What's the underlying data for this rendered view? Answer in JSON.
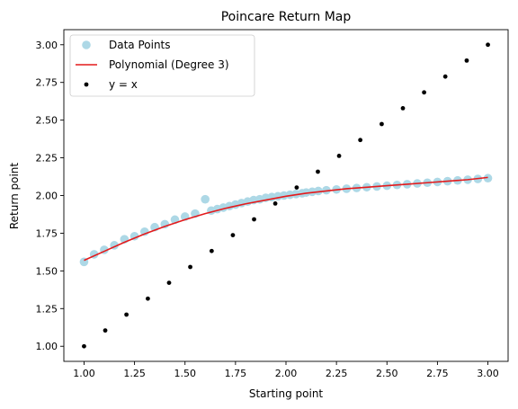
{
  "chart_data": {
    "type": "scatter",
    "title": "Poincare Return Map",
    "xlabel": "Starting point",
    "ylabel": "Return point",
    "xlim": [
      0.9,
      3.1
    ],
    "ylim": [
      0.9,
      3.1
    ],
    "xticks": [
      1.0,
      1.25,
      1.5,
      1.75,
      2.0,
      2.25,
      2.5,
      2.75,
      3.0
    ],
    "yticks": [
      1.0,
      1.25,
      1.5,
      1.75,
      2.0,
      2.25,
      2.5,
      2.75,
      3.0
    ],
    "xtick_labels": [
      "1.00",
      "1.25",
      "1.50",
      "1.75",
      "2.00",
      "2.25",
      "2.50",
      "2.75",
      "3.00"
    ],
    "ytick_labels": [
      "1.00",
      "1.25",
      "1.50",
      "1.75",
      "2.00",
      "2.25",
      "2.50",
      "2.75",
      "3.00"
    ],
    "grid": false,
    "legend_position": "upper-left",
    "series": [
      {
        "name": "Data Points",
        "kind": "scatter",
        "color": "#add8e6",
        "points": [
          [
            1.0,
            1.56
          ],
          [
            1.05,
            1.61
          ],
          [
            1.1,
            1.64
          ],
          [
            1.15,
            1.67
          ],
          [
            1.2,
            1.71
          ],
          [
            1.25,
            1.73
          ],
          [
            1.3,
            1.76
          ],
          [
            1.35,
            1.79
          ],
          [
            1.4,
            1.81
          ],
          [
            1.45,
            1.84
          ],
          [
            1.5,
            1.86
          ],
          [
            1.55,
            1.88
          ],
          [
            1.6,
            1.975
          ],
          [
            1.63,
            1.9
          ],
          [
            1.66,
            1.91
          ],
          [
            1.69,
            1.92
          ],
          [
            1.72,
            1.93
          ],
          [
            1.75,
            1.94
          ],
          [
            1.78,
            1.95
          ],
          [
            1.81,
            1.96
          ],
          [
            1.84,
            1.97
          ],
          [
            1.87,
            1.975
          ],
          [
            1.9,
            1.985
          ],
          [
            1.93,
            1.99
          ],
          [
            1.96,
            1.995
          ],
          [
            1.99,
            2.0
          ],
          [
            2.02,
            2.005
          ],
          [
            2.05,
            2.01
          ],
          [
            2.08,
            2.015
          ],
          [
            2.1,
            2.02
          ],
          [
            2.13,
            2.025
          ],
          [
            2.16,
            2.03
          ],
          [
            2.2,
            2.035
          ],
          [
            2.25,
            2.04
          ],
          [
            2.3,
            2.045
          ],
          [
            2.35,
            2.05
          ],
          [
            2.4,
            2.055
          ],
          [
            2.45,
            2.06
          ],
          [
            2.5,
            2.065
          ],
          [
            2.55,
            2.07
          ],
          [
            2.6,
            2.075
          ],
          [
            2.65,
            2.08
          ],
          [
            2.7,
            2.085
          ],
          [
            2.75,
            2.09
          ],
          [
            2.8,
            2.095
          ],
          [
            2.85,
            2.1
          ],
          [
            2.9,
            2.105
          ],
          [
            2.95,
            2.11
          ],
          [
            3.0,
            2.115
          ]
        ]
      },
      {
        "name": "Polynomial (Degree 3)",
        "kind": "line",
        "color": "#e41a1c",
        "points": [
          [
            1.0,
            1.57
          ],
          [
            1.1,
            1.63
          ],
          [
            1.2,
            1.69
          ],
          [
            1.3,
            1.745
          ],
          [
            1.4,
            1.795
          ],
          [
            1.5,
            1.84
          ],
          [
            1.6,
            1.88
          ],
          [
            1.7,
            1.915
          ],
          [
            1.8,
            1.945
          ],
          [
            1.9,
            1.97
          ],
          [
            2.0,
            1.995
          ],
          [
            2.1,
            2.015
          ],
          [
            2.2,
            2.03
          ],
          [
            2.3,
            2.045
          ],
          [
            2.4,
            2.055
          ],
          [
            2.5,
            2.065
          ],
          [
            2.6,
            2.075
          ],
          [
            2.7,
            2.085
          ],
          [
            2.8,
            2.095
          ],
          [
            2.9,
            2.105
          ],
          [
            3.0,
            2.12
          ]
        ]
      },
      {
        "name": "y = x",
        "kind": "scatter",
        "color": "#000000",
        "points": [
          [
            1.0,
            1.0
          ],
          [
            1.105,
            1.105
          ],
          [
            1.21,
            1.21
          ],
          [
            1.316,
            1.316
          ],
          [
            1.421,
            1.421
          ],
          [
            1.526,
            1.526
          ],
          [
            1.632,
            1.632
          ],
          [
            1.737,
            1.737
          ],
          [
            1.842,
            1.842
          ],
          [
            1.947,
            1.947
          ],
          [
            2.053,
            2.053
          ],
          [
            2.158,
            2.158
          ],
          [
            2.263,
            2.263
          ],
          [
            2.368,
            2.368
          ],
          [
            2.474,
            2.474
          ],
          [
            2.579,
            2.579
          ],
          [
            2.684,
            2.684
          ],
          [
            2.789,
            2.789
          ],
          [
            2.895,
            2.895
          ],
          [
            3.0,
            3.0
          ]
        ]
      }
    ]
  }
}
